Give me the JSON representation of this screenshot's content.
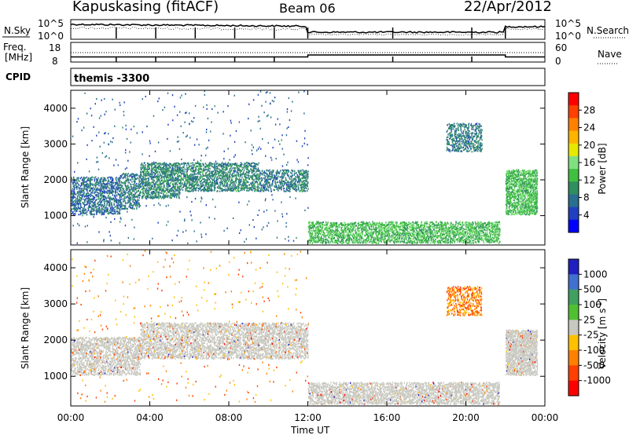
{
  "header": {
    "title": "Kapuskasing (fitACF)",
    "beam": "Beam 06",
    "date": "22/Apr/2012"
  },
  "noise_panel": {
    "left_label": "N.Sky",
    "right_label": "N.Search",
    "ticks_left": [
      "10^5",
      "10^0"
    ],
    "ticks_right": [
      "10^5",
      "10^0"
    ]
  },
  "freq_panel": {
    "left_label_line1": "Freq.",
    "left_label_line2": "[MHz]",
    "right_label": "Nave",
    "ticks_left": [
      "18",
      "8"
    ],
    "ticks_right": [
      "60",
      "0"
    ],
    "freq_steps": [
      [
        0,
        10.6
      ],
      [
        12.0,
        11.6
      ],
      [
        22.0,
        10.6
      ],
      [
        24.0,
        10.6
      ]
    ]
  },
  "cpid": {
    "label": "CPID",
    "program": "themis -3300"
  },
  "power_colorbar": {
    "title": "Power [dB]",
    "ticks": [
      "28",
      "24",
      "20",
      "16",
      "12",
      "8",
      "4"
    ],
    "colors": [
      "#ff0000",
      "#ff4000",
      "#ff8000",
      "#ffb400",
      "#e8e800",
      "#7fe07f",
      "#40c040",
      "#2f8f5f",
      "#2a6f8f",
      "#2040c0",
      "#0000ff"
    ]
  },
  "velocity_colorbar": {
    "title": "Velocity [m s",
    "title_sup": "-1",
    "title_tail": "]",
    "ticks": [
      "1000",
      "500",
      "100",
      "25",
      "-25",
      "-100",
      "-500",
      "-1000"
    ],
    "colors": [
      "#2020c0",
      "#4070d0",
      "#40a060",
      "#50c030",
      "#c8c8c0",
      "#ffc000",
      "#ff8000",
      "#ff4000",
      "#ff0000"
    ]
  },
  "chart_data": [
    {
      "type": "heatmap",
      "name": "power",
      "ylabel": "Slant Range [km]",
      "yticks": [
        1000,
        2000,
        3000,
        4000
      ],
      "ylim": [
        180,
        4500
      ],
      "xlim": [
        0,
        24
      ],
      "regions": [
        {
          "t0": 0.0,
          "t1": 2.5,
          "r0": 1050,
          "r1": 2100,
          "val": 6,
          "density": 0.55
        },
        {
          "t0": 2.5,
          "t1": 3.5,
          "r0": 1200,
          "r1": 2200,
          "val": 7,
          "density": 0.5
        },
        {
          "t0": 3.5,
          "t1": 5.5,
          "r0": 1500,
          "r1": 2500,
          "val": 8,
          "density": 0.6
        },
        {
          "t0": 5.5,
          "t1": 9.5,
          "r0": 1700,
          "r1": 2500,
          "val": 8,
          "density": 0.55
        },
        {
          "t0": 9.5,
          "t1": 11.5,
          "r0": 1700,
          "r1": 2300,
          "val": 7,
          "density": 0.45
        },
        {
          "t0": 11.5,
          "t1": 12.0,
          "r0": 1700,
          "r1": 2300,
          "val": 8,
          "density": 0.6
        },
        {
          "t0": 0.0,
          "t1": 12.0,
          "r0": 250,
          "r1": 4500,
          "val": 5,
          "density": 0.015
        },
        {
          "t0": 12.0,
          "t1": 21.7,
          "r0": 250,
          "r1": 850,
          "val": 12,
          "density": 0.6
        },
        {
          "t0": 19.0,
          "t1": 20.8,
          "r0": 2800,
          "r1": 3600,
          "val": 7,
          "density": 0.45
        },
        {
          "t0": 22.0,
          "t1": 23.6,
          "r0": 1050,
          "r1": 2300,
          "val": 12,
          "density": 0.75
        }
      ]
    },
    {
      "type": "heatmap",
      "name": "velocity",
      "ylabel": "Slant Range [km]",
      "xlabel": "Time UT",
      "xticks": [
        "00:00",
        "04:00",
        "08:00",
        "12:00",
        "16:00",
        "20:00",
        "00:00"
      ],
      "yticks": [
        1000,
        2000,
        3000,
        4000
      ],
      "ylim": [
        180,
        4500
      ],
      "xlim": [
        0,
        24
      ],
      "regions": [
        {
          "t0": 0.0,
          "t1": 3.5,
          "r0": 1050,
          "r1": 2100,
          "val": 0,
          "density": 0.55
        },
        {
          "t0": 3.5,
          "t1": 12.0,
          "r0": 1500,
          "r1": 2500,
          "val": 0,
          "density": 0.55
        },
        {
          "t0": 0.0,
          "t1": 12.0,
          "r0": 250,
          "r1": 4500,
          "val": -200,
          "density": 0.012
        },
        {
          "t0": 12.0,
          "t1": 21.7,
          "r0": 250,
          "r1": 850,
          "val": 0,
          "density": 0.6
        },
        {
          "t0": 19.0,
          "t1": 20.8,
          "r0": 2700,
          "r1": 3500,
          "val": -300,
          "density": 0.45
        },
        {
          "t0": 22.0,
          "t1": 23.6,
          "r0": 1050,
          "r1": 2300,
          "val": 0,
          "density": 0.8
        }
      ]
    }
  ]
}
